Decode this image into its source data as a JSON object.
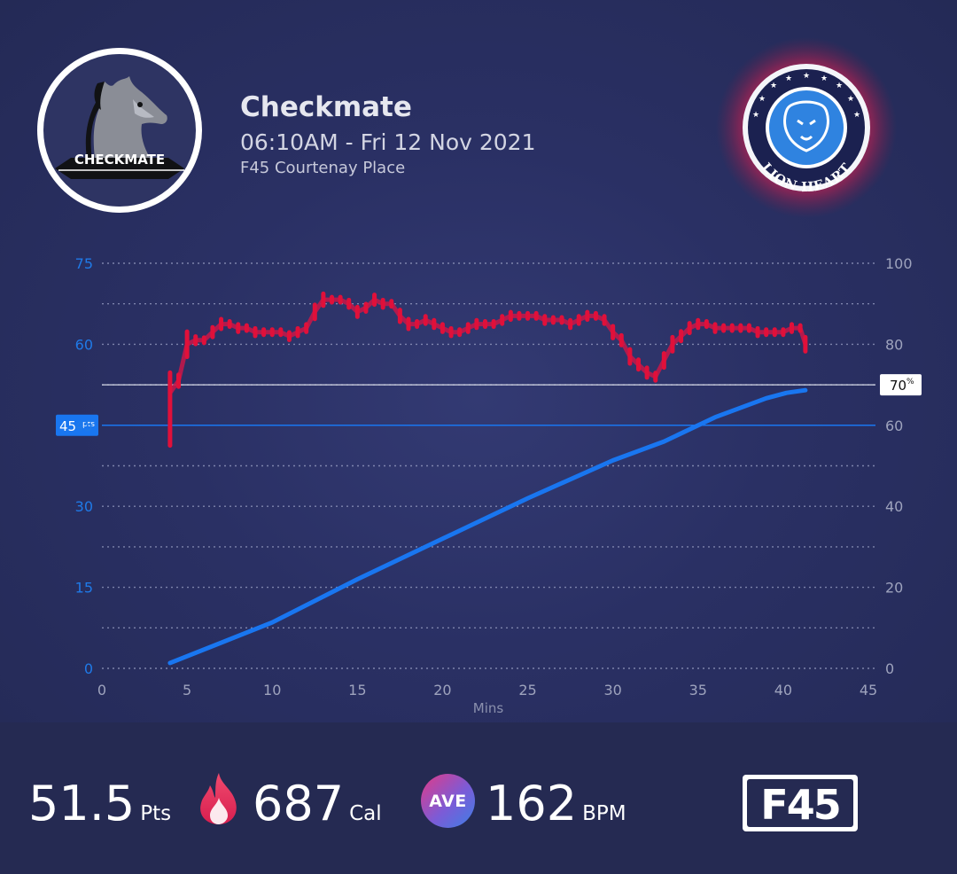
{
  "header": {
    "team_name": "Checkmate",
    "datetime": "06:10AM - Fri 12 Nov 2021",
    "location": "F45 Courtenay Place"
  },
  "logos": {
    "left_text": "CHECKMATE",
    "right_text": "LION HEART"
  },
  "chart_data": {
    "type": "line",
    "xlabel": "Mins",
    "xlim": [
      0,
      45
    ],
    "x_ticks": [
      "0",
      "5",
      "10",
      "15",
      "20",
      "25",
      "30",
      "35",
      "40",
      "45"
    ],
    "y_left_ticks": [
      "0",
      "15",
      "30",
      "45",
      "60",
      "75"
    ],
    "y_left_lim": [
      0,
      75
    ],
    "y_right_ticks": [
      "0",
      "20",
      "40",
      "60",
      "80",
      "100"
    ],
    "y_right_lim": [
      0,
      100
    ],
    "target_line": {
      "value": 45,
      "label": "45",
      "unit": "pts",
      "axis": "left"
    },
    "threshold_line": {
      "value": 70,
      "label": "70",
      "unit": "%",
      "axis": "right"
    },
    "grid": true,
    "series": [
      {
        "id": "points",
        "axis": "left",
        "color": "#1976f0",
        "x": [
          4,
          10,
          15,
          20,
          25,
          30,
          33,
          36,
          39,
          40.2,
          41.3
        ],
        "y": [
          1,
          8.5,
          16.5,
          24,
          31.5,
          38.5,
          42,
          46.5,
          50,
          51,
          51.5
        ]
      },
      {
        "id": "heart-rate-percent",
        "axis": "right",
        "color": "#e0103a",
        "x": [
          4,
          4.5,
          5,
          5.5,
          6,
          6.5,
          7,
          7.5,
          8,
          8.5,
          9,
          9.5,
          10,
          10.5,
          11,
          11.5,
          12,
          12.5,
          13,
          13.5,
          14,
          14.5,
          15,
          15.5,
          16,
          16.5,
          17,
          17.5,
          18,
          18.5,
          19,
          19.5,
          20,
          20.5,
          21,
          21.5,
          22,
          22.5,
          23,
          23.5,
          24,
          24.5,
          25,
          25.5,
          26,
          26.5,
          27,
          27.5,
          28,
          28.5,
          29,
          29.5,
          30,
          30.5,
          31,
          31.5,
          32,
          32.5,
          33,
          33.5,
          34,
          34.5,
          35,
          35.5,
          36,
          36.5,
          37,
          37.5,
          38,
          38.5,
          39,
          39.5,
          40,
          40.5,
          41,
          41.3
        ],
        "y": [
          68,
          71,
          80,
          81,
          81,
          83,
          85,
          85,
          84,
          84,
          83,
          83,
          83,
          83,
          82,
          83,
          84,
          88,
          91,
          91,
          91,
          90,
          88,
          89,
          91,
          90,
          90,
          87,
          85,
          85,
          86,
          85,
          84,
          83,
          83,
          84,
          85,
          85,
          85,
          86,
          87,
          87,
          87,
          87,
          86,
          86,
          86,
          85,
          86,
          87,
          87,
          86,
          83,
          81,
          77,
          75,
          73,
          72,
          76,
          80,
          82,
          84,
          85,
          85,
          84,
          84,
          84,
          84,
          84,
          83,
          83,
          83,
          83,
          84,
          84,
          80
        ]
      }
    ]
  },
  "stats": {
    "points_value": "51.5",
    "points_unit": "Pts",
    "calories_value": "687",
    "calories_unit": "Cal",
    "ave_label": "AVE",
    "bpm_value": "162",
    "bpm_unit": "BPM"
  },
  "brand": {
    "f45_label": "F45"
  }
}
